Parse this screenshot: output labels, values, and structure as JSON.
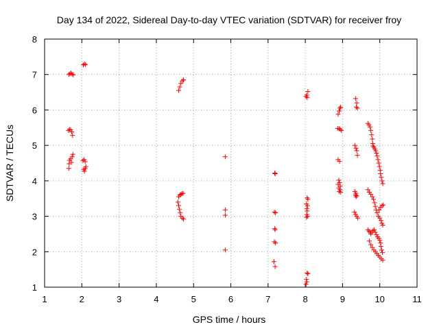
{
  "chart_data": {
    "type": "scatter",
    "title": "Day 134 of 2022, Sidereal Day-to-day VTEC variation (SDTVAR) for receiver froy",
    "xlabel": "GPS time / hours",
    "ylabel": "SDTVAR / TECUs",
    "xlim": [
      1,
      11
    ],
    "ylim": [
      1,
      8
    ],
    "xticks": [
      "1",
      "2",
      "3",
      "4",
      "5",
      "6",
      "7",
      "8",
      "9",
      "10",
      "11"
    ],
    "yticks": [
      "1",
      "2",
      "3",
      "4",
      "5",
      "6",
      "7",
      "8"
    ],
    "grid": true,
    "marker": "+",
    "series": [
      {
        "name": "SDTVAR",
        "color": "#ff0000",
        "points": [
          [
            1.65,
            7.0
          ],
          [
            1.68,
            7.02
          ],
          [
            1.71,
            7.04
          ],
          [
            1.74,
            7.01
          ],
          [
            1.77,
            6.99
          ],
          [
            2.04,
            7.27
          ],
          [
            2.07,
            7.3
          ],
          [
            2.1,
            7.28
          ],
          [
            1.64,
            5.42
          ],
          [
            1.67,
            5.45
          ],
          [
            1.7,
            5.44
          ],
          [
            1.73,
            5.38
          ],
          [
            1.75,
            5.28
          ],
          [
            1.65,
            4.35
          ],
          [
            1.66,
            4.48
          ],
          [
            1.67,
            4.58
          ],
          [
            1.7,
            4.62
          ],
          [
            1.72,
            4.52
          ],
          [
            1.74,
            4.68
          ],
          [
            1.76,
            4.75
          ],
          [
            2.03,
            4.57
          ],
          [
            2.06,
            4.6
          ],
          [
            2.09,
            4.54
          ],
          [
            2.05,
            4.32
          ],
          [
            2.07,
            4.27
          ],
          [
            2.09,
            4.35
          ],
          [
            2.11,
            4.4
          ],
          [
            4.6,
            6.55
          ],
          [
            4.63,
            6.65
          ],
          [
            4.66,
            6.75
          ],
          [
            4.7,
            6.82
          ],
          [
            4.73,
            6.85
          ],
          [
            4.6,
            3.55
          ],
          [
            4.63,
            3.6
          ],
          [
            4.66,
            3.62
          ],
          [
            4.69,
            3.64
          ],
          [
            4.72,
            3.65
          ],
          [
            4.58,
            3.4
          ],
          [
            4.6,
            3.3
          ],
          [
            4.62,
            3.2
          ],
          [
            4.64,
            3.1
          ],
          [
            4.66,
            3.0
          ],
          [
            4.7,
            2.95
          ],
          [
            4.73,
            2.92
          ],
          [
            5.85,
            4.68
          ],
          [
            5.85,
            3.18
          ],
          [
            5.85,
            3.03
          ],
          [
            5.85,
            2.05
          ],
          [
            7.18,
            4.22
          ],
          [
            7.19,
            4.2
          ],
          [
            7.17,
            3.12
          ],
          [
            7.2,
            3.1
          ],
          [
            7.18,
            2.65
          ],
          [
            7.19,
            2.62
          ],
          [
            7.17,
            2.28
          ],
          [
            7.2,
            2.25
          ],
          [
            7.16,
            1.72
          ],
          [
            7.19,
            1.58
          ],
          [
            8.02,
            6.38
          ],
          [
            8.04,
            6.42
          ],
          [
            8.07,
            6.52
          ],
          [
            8.05,
            6.35
          ],
          [
            8.05,
            3.52
          ],
          [
            8.07,
            3.48
          ],
          [
            8.03,
            3.35
          ],
          [
            8.06,
            3.3
          ],
          [
            8.04,
            3.22
          ],
          [
            8.05,
            3.15
          ],
          [
            8.04,
            3.05
          ],
          [
            8.06,
            3.0
          ],
          [
            8.03,
            2.97
          ],
          [
            8.05,
            1.4
          ],
          [
            8.07,
            1.38
          ],
          [
            8.03,
            1.22
          ],
          [
            8.04,
            1.15
          ],
          [
            8.02,
            1.08
          ],
          [
            8.93,
            6.05
          ],
          [
            8.95,
            6.08
          ],
          [
            8.91,
            5.97
          ],
          [
            8.88,
            5.88
          ],
          [
            8.87,
            5.48
          ],
          [
            8.91,
            5.47
          ],
          [
            8.94,
            5.45
          ],
          [
            8.97,
            5.42
          ],
          [
            8.88,
            4.6
          ],
          [
            8.92,
            4.55
          ],
          [
            8.9,
            4.02
          ],
          [
            8.92,
            3.95
          ],
          [
            8.88,
            3.9
          ],
          [
            8.94,
            3.85
          ],
          [
            8.9,
            3.8
          ],
          [
            8.93,
            3.75
          ],
          [
            8.91,
            3.7
          ],
          [
            8.95,
            3.68
          ],
          [
            9.35,
            6.32
          ],
          [
            9.38,
            6.2
          ],
          [
            9.37,
            6.08
          ],
          [
            9.4,
            6.05
          ],
          [
            9.33,
            5.0
          ],
          [
            9.36,
            4.92
          ],
          [
            9.38,
            4.85
          ],
          [
            9.4,
            4.72
          ],
          [
            9.33,
            3.7
          ],
          [
            9.36,
            3.65
          ],
          [
            9.35,
            3.6
          ],
          [
            9.38,
            3.58
          ],
          [
            9.36,
            3.55
          ],
          [
            9.32,
            3.12
          ],
          [
            9.35,
            3.05
          ],
          [
            9.38,
            3.0
          ],
          [
            9.41,
            2.95
          ],
          [
            9.68,
            5.62
          ],
          [
            9.71,
            5.58
          ],
          [
            9.74,
            5.52
          ],
          [
            9.76,
            5.42
          ],
          [
            9.78,
            5.3
          ],
          [
            9.8,
            5.18
          ],
          [
            9.81,
            5.05
          ],
          [
            9.82,
            4.98
          ],
          [
            9.84,
            4.95
          ],
          [
            9.87,
            4.9
          ],
          [
            9.89,
            4.85
          ],
          [
            9.91,
            4.78
          ],
          [
            9.93,
            4.7
          ],
          [
            9.95,
            4.6
          ],
          [
            9.97,
            4.5
          ],
          [
            9.99,
            4.4
          ],
          [
            10.01,
            4.3
          ],
          [
            10.02,
            4.2
          ],
          [
            10.04,
            4.1
          ],
          [
            10.06,
            4.0
          ],
          [
            10.08,
            3.92
          ],
          [
            9.68,
            3.75
          ],
          [
            9.72,
            3.68
          ],
          [
            9.76,
            3.62
          ],
          [
            9.8,
            3.55
          ],
          [
            9.83,
            3.48
          ],
          [
            9.86,
            3.38
          ],
          [
            9.88,
            3.28
          ],
          [
            9.9,
            3.18
          ],
          [
            9.93,
            3.1
          ],
          [
            9.96,
            3.0
          ],
          [
            10.0,
            2.95
          ],
          [
            10.03,
            2.88
          ],
          [
            10.06,
            2.8
          ],
          [
            10.08,
            2.75
          ],
          [
            9.98,
            3.18
          ],
          [
            10.02,
            3.25
          ],
          [
            10.06,
            3.3
          ],
          [
            10.09,
            3.32
          ],
          [
            9.68,
            2.62
          ],
          [
            9.71,
            2.58
          ],
          [
            9.74,
            2.55
          ],
          [
            9.76,
            2.5
          ],
          [
            9.79,
            2.55
          ],
          [
            9.82,
            2.6
          ],
          [
            9.85,
            2.62
          ],
          [
            9.88,
            2.55
          ],
          [
            9.91,
            2.48
          ],
          [
            9.94,
            2.42
          ],
          [
            9.97,
            2.38
          ],
          [
            10.0,
            2.32
          ],
          [
            10.02,
            2.25
          ],
          [
            10.03,
            2.15
          ],
          [
            10.05,
            2.05
          ],
          [
            10.07,
            1.98
          ],
          [
            9.72,
            2.3
          ],
          [
            9.76,
            2.2
          ],
          [
            9.8,
            2.12
          ],
          [
            9.84,
            2.05
          ],
          [
            9.88,
            2.0
          ],
          [
            9.92,
            1.95
          ],
          [
            9.96,
            1.9
          ],
          [
            10.0,
            1.85
          ],
          [
            10.04,
            1.8
          ],
          [
            10.08,
            1.76
          ]
        ]
      }
    ]
  }
}
